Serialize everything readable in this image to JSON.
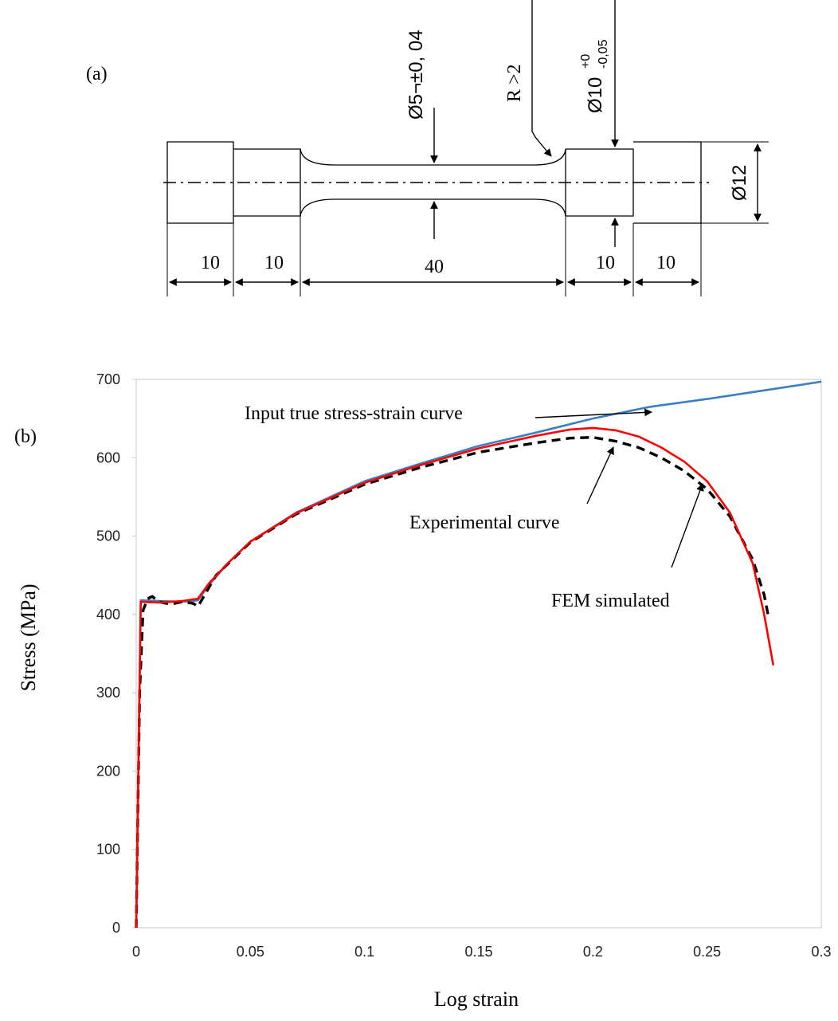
{
  "panel_a": {
    "label": "(a)",
    "dims": {
      "d_gauge": "Ø5¬±0, 04",
      "radius": "R >2",
      "d_shoulder_main": "Ø10",
      "d_shoulder_sup": "+0",
      "d_shoulder_sub": "-0,05",
      "d_grip": "Ø12",
      "len_1": "10",
      "len_2": "10",
      "len_3": "40",
      "len_4": "10",
      "len_5": "10"
    }
  },
  "panel_b": {
    "label": "(b)",
    "annotations": {
      "input": "Input true stress-strain curve",
      "experimental": "Experimental curve",
      "fem": "FEM simulated"
    }
  },
  "chart_data": {
    "type": "line",
    "xlabel": "Log strain",
    "ylabel": "Stress (MPa)",
    "xlim": [
      0,
      0.3
    ],
    "ylim": [
      0,
      700
    ],
    "x_ticks": [
      "0",
      "0.05",
      "0.1",
      "0.15",
      "0.2",
      "0.25",
      "0.3"
    ],
    "y_ticks": [
      "0",
      "100",
      "200",
      "300",
      "400",
      "500",
      "600",
      "700"
    ],
    "grid": false,
    "series": [
      {
        "color": "#3a7fc4",
        "style": "solid",
        "points": [
          [
            0,
            0
          ],
          [
            0.002,
            418
          ],
          [
            0.01,
            417
          ],
          [
            0.02,
            416
          ],
          [
            0.027,
            418
          ],
          [
            0.032,
            438
          ],
          [
            0.04,
            465
          ],
          [
            0.05,
            493
          ],
          [
            0.07,
            530
          ],
          [
            0.1,
            570
          ],
          [
            0.125,
            593
          ],
          [
            0.15,
            615
          ],
          [
            0.175,
            632
          ],
          [
            0.2,
            650
          ],
          [
            0.225,
            665
          ],
          [
            0.25,
            675
          ],
          [
            0.275,
            686
          ],
          [
            0.3,
            697
          ]
        ]
      },
      {
        "color": "#000000",
        "style": "dashed",
        "points": [
          [
            0,
            0
          ],
          [
            0.0015,
            300
          ],
          [
            0.003,
            405
          ],
          [
            0.005,
            420
          ],
          [
            0.007,
            423
          ],
          [
            0.01,
            416
          ],
          [
            0.015,
            413
          ],
          [
            0.02,
            416
          ],
          [
            0.025,
            414
          ],
          [
            0.027,
            410
          ],
          [
            0.03,
            425
          ],
          [
            0.035,
            450
          ],
          [
            0.045,
            478
          ],
          [
            0.05,
            492
          ],
          [
            0.07,
            528
          ],
          [
            0.1,
            566
          ],
          [
            0.125,
            588
          ],
          [
            0.15,
            607
          ],
          [
            0.175,
            619
          ],
          [
            0.19,
            625
          ],
          [
            0.2,
            626
          ],
          [
            0.21,
            621
          ],
          [
            0.22,
            613
          ],
          [
            0.23,
            600
          ],
          [
            0.24,
            583
          ],
          [
            0.25,
            560
          ],
          [
            0.26,
            525
          ],
          [
            0.27,
            470
          ],
          [
            0.275,
            425
          ],
          [
            0.277,
            395
          ]
        ]
      },
      {
        "color": "#ff0000",
        "style": "solid",
        "points": [
          [
            0,
            0
          ],
          [
            0.002,
            416
          ],
          [
            0.01,
            415
          ],
          [
            0.02,
            417
          ],
          [
            0.027,
            420
          ],
          [
            0.032,
            440
          ],
          [
            0.04,
            465
          ],
          [
            0.05,
            493
          ],
          [
            0.07,
            529
          ],
          [
            0.1,
            568
          ],
          [
            0.125,
            591
          ],
          [
            0.15,
            612
          ],
          [
            0.175,
            628
          ],
          [
            0.19,
            636
          ],
          [
            0.2,
            638
          ],
          [
            0.21,
            635
          ],
          [
            0.22,
            627
          ],
          [
            0.23,
            613
          ],
          [
            0.24,
            595
          ],
          [
            0.25,
            570
          ],
          [
            0.26,
            530
          ],
          [
            0.27,
            465
          ],
          [
            0.275,
            400
          ],
          [
            0.279,
            335
          ]
        ]
      }
    ]
  }
}
